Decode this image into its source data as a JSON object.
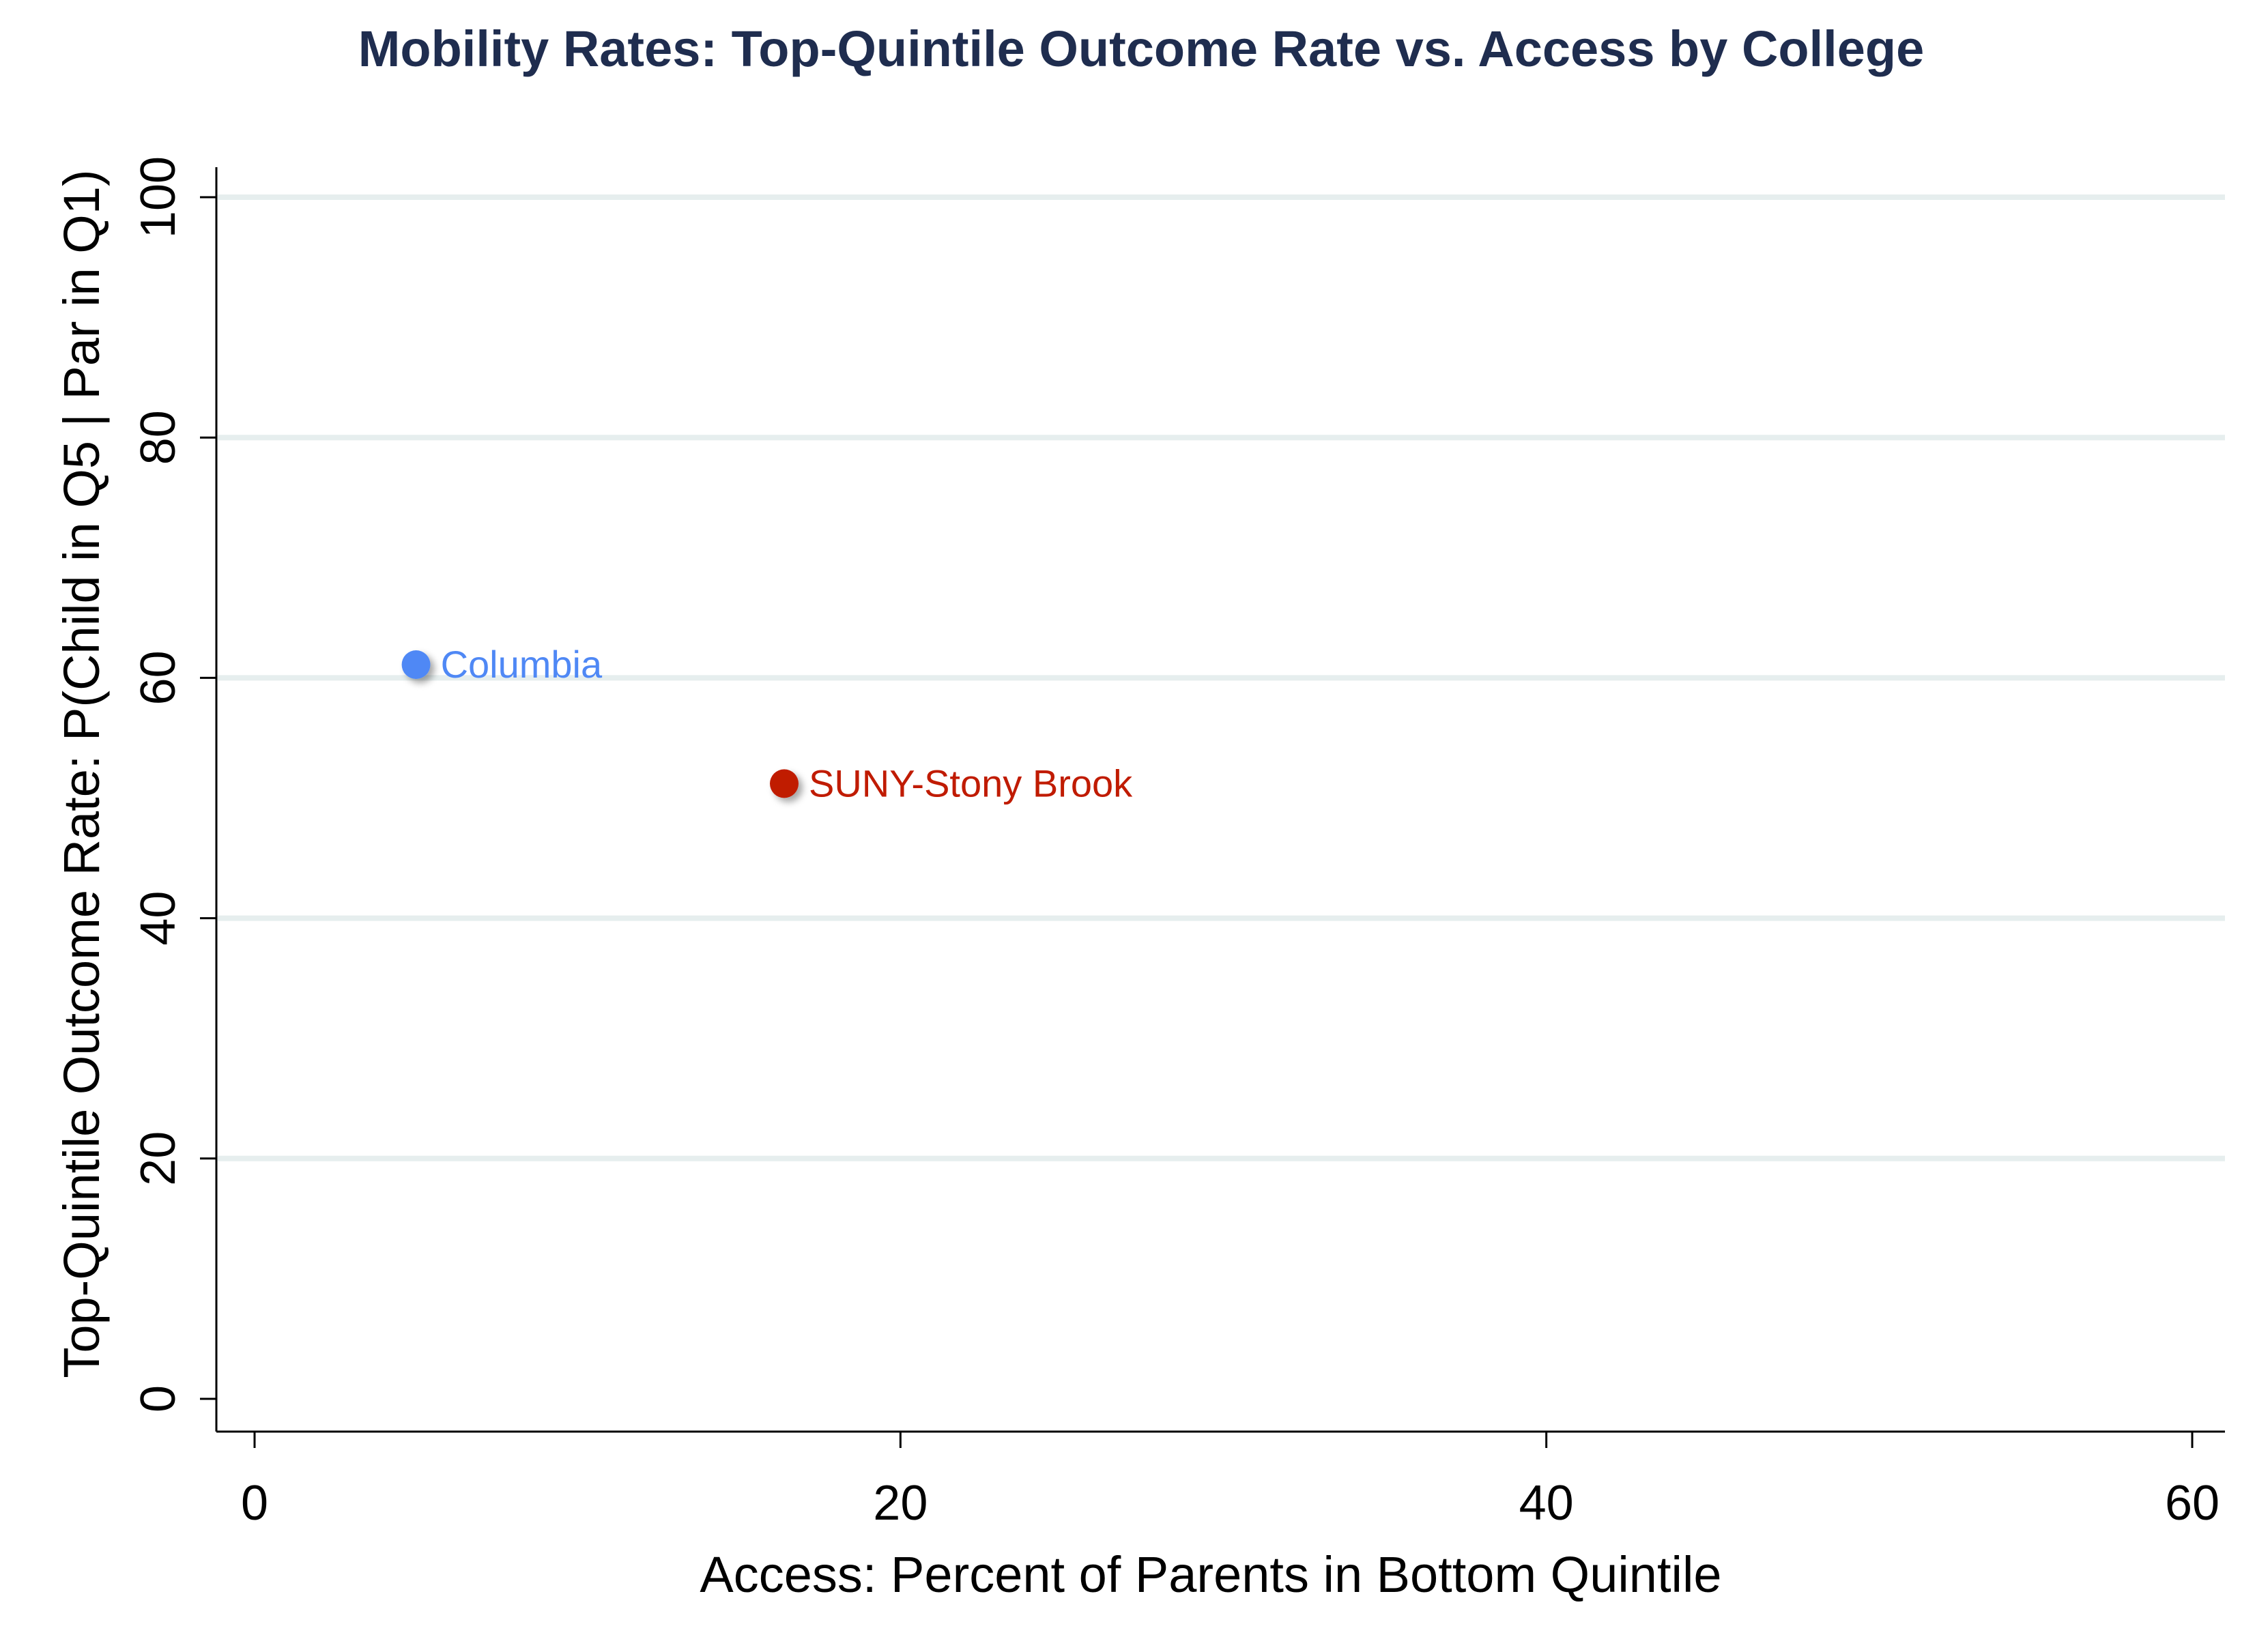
{
  "chart_data": {
    "type": "scatter",
    "title": "Mobility Rates: Top-Quintile Outcome Rate vs. Access by College",
    "xlabel": "Access: Percent of Parents in Bottom Quintile",
    "ylabel": "Top-Quintile Outcome Rate: P(Child in Q5 | Par in Q1)",
    "xlim": [
      0,
      60
    ],
    "ylim": [
      0,
      100
    ],
    "xticks": [
      0,
      20,
      40,
      60
    ],
    "yticks": [
      0,
      20,
      40,
      60,
      80,
      100
    ],
    "grid": "horizontal",
    "points": [
      {
        "label": "Columbia",
        "x": 5.0,
        "y": 61.1,
        "color": "#4f88f5"
      },
      {
        "label": "SUNY-Stony Brook",
        "x": 16.4,
        "y": 51.2,
        "color": "#c01b00"
      }
    ]
  }
}
